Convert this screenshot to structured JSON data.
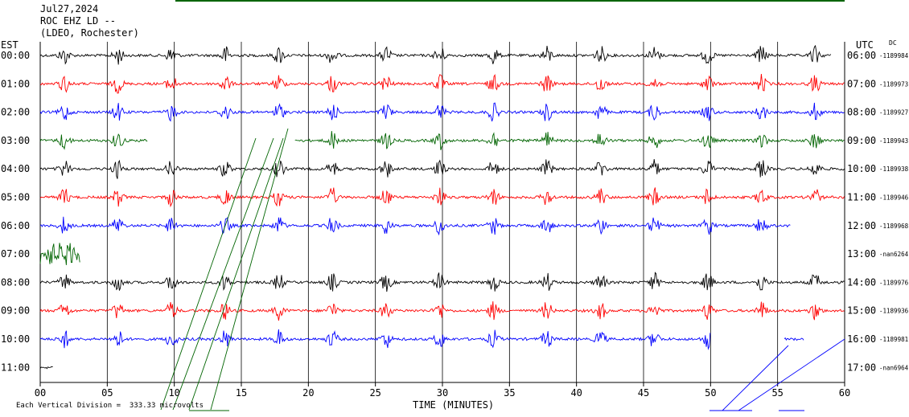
{
  "header": {
    "date": "Jul27,2024",
    "station": "ROC EHZ LD --",
    "network": "(LDEO, Rochester)"
  },
  "left_zone": "EST",
  "right_zone": "UTC",
  "dc_label": "DC",
  "footer": {
    "scale": "Each Vertical Division =  333.33 microvolts"
  },
  "colors": {
    "black": "#000000",
    "red": "#ff0000",
    "blue": "#0000ff",
    "green": "#006400",
    "grid": "#000000"
  },
  "chart_data": {
    "type": "line",
    "xlabel": "TIME (MINUTES)",
    "xlim": [
      0,
      60
    ],
    "x_ticks": [
      {
        "value": 0,
        "label": "00"
      },
      {
        "value": 5,
        "label": "05"
      },
      {
        "value": 10,
        "label": "10"
      },
      {
        "value": 15,
        "label": "15"
      },
      {
        "value": 20,
        "label": "20"
      },
      {
        "value": 25,
        "label": "25"
      },
      {
        "value": 30,
        "label": "30"
      },
      {
        "value": 35,
        "label": "35"
      },
      {
        "value": 40,
        "label": "40"
      },
      {
        "value": 45,
        "label": "45"
      },
      {
        "value": 50,
        "label": "50"
      },
      {
        "value": 55,
        "label": "55"
      },
      {
        "value": 60,
        "label": "60"
      }
    ],
    "rows": [
      {
        "est": "00:00",
        "utc": "06:00",
        "dc": "-1189984",
        "color": "black",
        "start": 0,
        "end": 59
      },
      {
        "est": "01:00",
        "utc": "07:00",
        "dc": "-1189973",
        "color": "red",
        "start": 0,
        "end": 60
      },
      {
        "est": "02:00",
        "utc": "08:00",
        "dc": "-1189927",
        "color": "blue",
        "start": 0,
        "end": 60
      },
      {
        "est": "03:00",
        "utc": "09:00",
        "dc": "-1189943",
        "color": "green",
        "start": 0,
        "end": 60,
        "gap": [
          8,
          19
        ]
      },
      {
        "est": "04:00",
        "utc": "10:00",
        "dc": "-1189938",
        "color": "black",
        "start": 0,
        "end": 60
      },
      {
        "est": "05:00",
        "utc": "11:00",
        "dc": "-1189946",
        "color": "red",
        "start": 0,
        "end": 60
      },
      {
        "est": "06:00",
        "utc": "12:00",
        "dc": "-1189968",
        "color": "blue",
        "start": 0,
        "end": 56
      },
      {
        "est": "07:00",
        "utc": "13:00",
        "dc": "-nan6264",
        "color": "green",
        "start": 0,
        "end": 3
      },
      {
        "est": "08:00",
        "utc": "14:00",
        "dc": "-1189976",
        "color": "black",
        "start": 0,
        "end": 60
      },
      {
        "est": "09:00",
        "utc": "15:00",
        "dc": "-1189936",
        "color": "red",
        "start": 0,
        "end": 60
      },
      {
        "est": "10:00",
        "utc": "16:00",
        "dc": "-1189981",
        "color": "blue",
        "start": 0,
        "end": 50,
        "extra": [
          55.5,
          57
        ]
      },
      {
        "est": "11:00",
        "utc": "17:00",
        "dc": "-nan6964",
        "color": "black",
        "start": 0,
        "end": 1
      }
    ],
    "grid": true
  }
}
